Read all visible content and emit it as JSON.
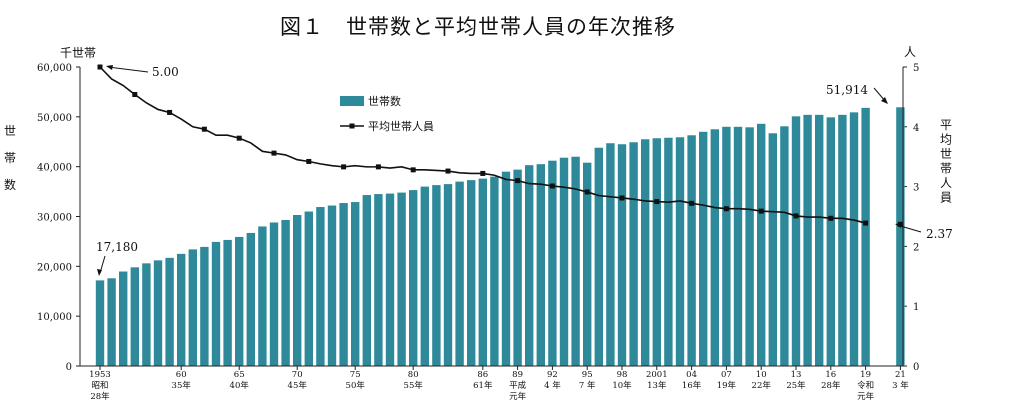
{
  "chart_data": {
    "type": "bar",
    "title": "図１　世帯数と平均世帯人員の年次推移",
    "left_unit": "千世帯",
    "left_label": [
      "世",
      "帯",
      "数"
    ],
    "right_unit": "人",
    "right_label": [
      "平",
      "均",
      "世",
      "帯",
      "人",
      "員"
    ],
    "left_ylim": [
      0,
      60000
    ],
    "right_ylim": [
      0,
      5
    ],
    "left_ticks": [
      "0",
      "10,000",
      "20,000",
      "30,000",
      "40,000",
      "50,000",
      "60,000"
    ],
    "right_ticks": [
      "0",
      "1",
      "2",
      "3",
      "4",
      "5"
    ],
    "legend": {
      "bar": "世帯数",
      "line": "平均世帯人員"
    },
    "years": [
      1953,
      1954,
      1955,
      1956,
      1957,
      1958,
      1959,
      1960,
      1961,
      1962,
      1963,
      1964,
      1965,
      1966,
      1967,
      1968,
      1969,
      1970,
      1971,
      1972,
      1973,
      1974,
      1975,
      1976,
      1977,
      1978,
      1979,
      1980,
      1981,
      1982,
      1983,
      1984,
      1985,
      1986,
      1987,
      1988,
      1989,
      1990,
      1991,
      1992,
      1993,
      1994,
      1995,
      1996,
      1997,
      1998,
      1999,
      2000,
      2001,
      2002,
      2003,
      2004,
      2005,
      2006,
      2007,
      2008,
      2009,
      2010,
      2011,
      2012,
      2013,
      2014,
      2015,
      2016,
      2017,
      2018,
      2019,
      2021
    ],
    "households": [
      17180,
      17600,
      18960,
      19800,
      20600,
      21200,
      21700,
      22500,
      23400,
      23900,
      24900,
      25300,
      25900,
      26700,
      28000,
      28800,
      29300,
      30300,
      31000,
      31900,
      32200,
      32700,
      32900,
      34300,
      34500,
      34600,
      34800,
      35300,
      36000,
      36300,
      36500,
      37000,
      37300,
      37600,
      38000,
      39000,
      39400,
      40300,
      40500,
      41200,
      41800,
      42000,
      40800,
      43800,
      44700,
      44500,
      44900,
      45500,
      45700,
      45800,
      45900,
      46300,
      47000,
      47500,
      48000,
      48000,
      47900,
      48600,
      46700,
      48100,
      50100,
      50400,
      50400,
      49900,
      50400,
      50900,
      51800,
      51914
    ],
    "avg_members": [
      5.0,
      4.8,
      4.69,
      4.54,
      4.4,
      4.29,
      4.24,
      4.13,
      4.0,
      3.96,
      3.86,
      3.86,
      3.81,
      3.73,
      3.59,
      3.56,
      3.53,
      3.45,
      3.42,
      3.38,
      3.35,
      3.33,
      3.35,
      3.33,
      3.33,
      3.31,
      3.33,
      3.28,
      3.28,
      3.27,
      3.26,
      3.23,
      3.22,
      3.22,
      3.19,
      3.12,
      3.1,
      3.05,
      3.04,
      3.01,
      2.99,
      2.96,
      2.91,
      2.85,
      2.83,
      2.81,
      2.79,
      2.76,
      2.75,
      2.74,
      2.76,
      2.72,
      2.69,
      2.65,
      2.63,
      2.63,
      2.62,
      2.59,
      2.58,
      2.57,
      2.51,
      2.49,
      2.49,
      2.47,
      2.47,
      2.44,
      2.39,
      2.37
    ],
    "x_labels": [
      {
        "year": 1953,
        "lines": [
          "1953",
          "昭和",
          "28年"
        ]
      },
      {
        "year": 1960,
        "lines": [
          "60",
          "35年"
        ]
      },
      {
        "year": 1965,
        "lines": [
          "65",
          "40年"
        ]
      },
      {
        "year": 1970,
        "lines": [
          "70",
          "45年"
        ]
      },
      {
        "year": 1975,
        "lines": [
          "75",
          "50年"
        ]
      },
      {
        "year": 1980,
        "lines": [
          "80",
          "55年"
        ]
      },
      {
        "year": 1986,
        "lines": [
          "86",
          "61年"
        ]
      },
      {
        "year": 1989,
        "lines": [
          "89",
          "平成",
          "元年"
        ]
      },
      {
        "year": 1992,
        "lines": [
          "92",
          "4 年"
        ]
      },
      {
        "year": 1995,
        "lines": [
          "95",
          "7 年"
        ]
      },
      {
        "year": 1998,
        "lines": [
          "98",
          "10年"
        ]
      },
      {
        "year": 2001,
        "lines": [
          "2001",
          "13年"
        ]
      },
      {
        "year": 2004,
        "lines": [
          "04",
          "16年"
        ]
      },
      {
        "year": 2007,
        "lines": [
          "07",
          "19年"
        ]
      },
      {
        "year": 2010,
        "lines": [
          "10",
          "22年"
        ]
      },
      {
        "year": 2013,
        "lines": [
          "13",
          "25年"
        ]
      },
      {
        "year": 2016,
        "lines": [
          "16",
          "28年"
        ]
      },
      {
        "year": 2019,
        "lines": [
          "19",
          "令和",
          "元年"
        ]
      },
      {
        "year": 2021,
        "lines": [
          "21",
          "3 年"
        ]
      }
    ],
    "annotations": {
      "first_households": "17,180",
      "last_households": "51,914",
      "first_members": "5.00",
      "last_members": "2.37"
    },
    "colors": {
      "bar": "#2e8a9a",
      "line": "#111111"
    }
  }
}
